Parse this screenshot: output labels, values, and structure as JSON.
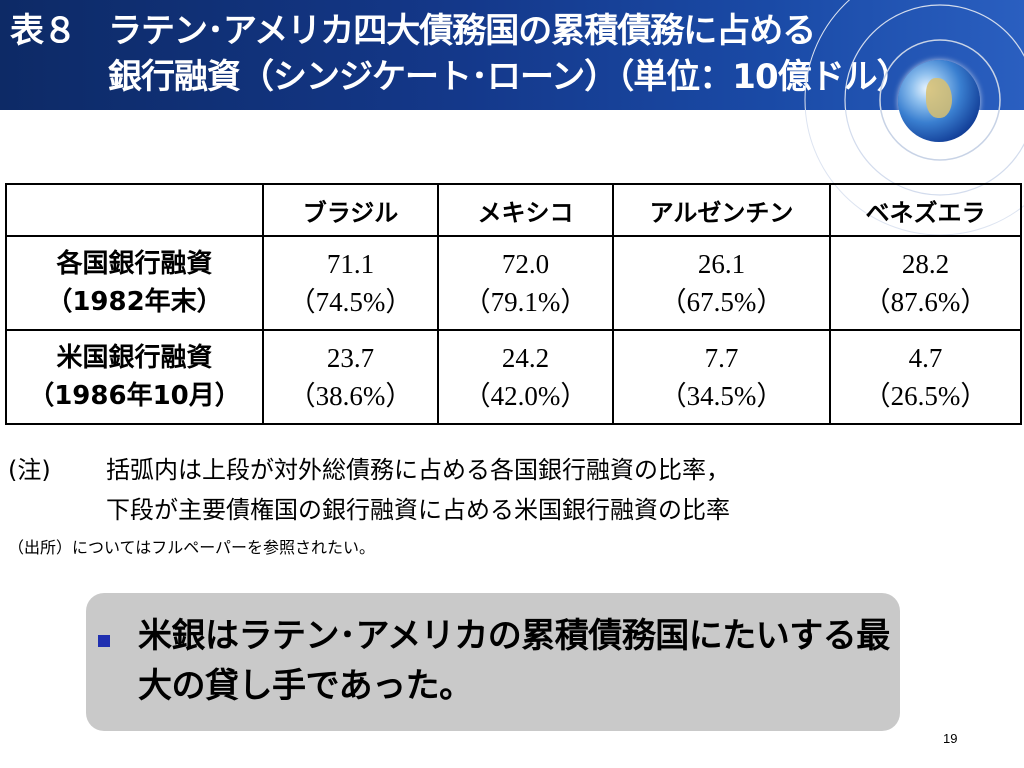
{
  "title": {
    "label": "表８",
    "line1": "ラテン･アメリカ四大債務国の累積債務に占める",
    "line2": "銀行融資（シンジケート･ローン）（単位：10億ドル）"
  },
  "table": {
    "columns": [
      "",
      "ブラジル",
      "メキシコ",
      "アルゼンチン",
      "ベネズエラ"
    ],
    "rows": [
      {
        "label": "各国銀行融資",
        "sublabel": "（1982年末）",
        "cells": [
          {
            "value": "71.1",
            "share": "（74.5%）"
          },
          {
            "value": "72.0",
            "share": "（79.1%）"
          },
          {
            "value": "26.1",
            "share": "（67.5%）"
          },
          {
            "value": "28.2",
            "share": "（87.6%）"
          }
        ]
      },
      {
        "label": "米国銀行融資",
        "sublabel": "（1986年10月）",
        "cells": [
          {
            "value": "23.7",
            "share": "（38.6%）"
          },
          {
            "value": "24.2",
            "share": "（42.0%）"
          },
          {
            "value": "7.7",
            "share": "（34.5%）"
          },
          {
            "value": "4.7",
            "share": "（26.5%）"
          }
        ]
      }
    ]
  },
  "note": {
    "label": "(注)",
    "line1": "括弧内は上段が対外総債務に占める各国銀行融資の比率，",
    "line2": "下段が主要債権国の銀行融資に占める米国銀行融資の比率"
  },
  "source": "（出所）についてはフルペーパーを参照されたい。",
  "callout": {
    "text": "米銀はラテン･アメリカの累積債務国にたいする最大の貸し手であった。"
  },
  "page_number": "19",
  "colors": {
    "header_dark": "#0d2a66",
    "header_light": "#2a5fc0",
    "callout_bg": "#c9c9c9",
    "bullet": "#1f2fb0"
  }
}
